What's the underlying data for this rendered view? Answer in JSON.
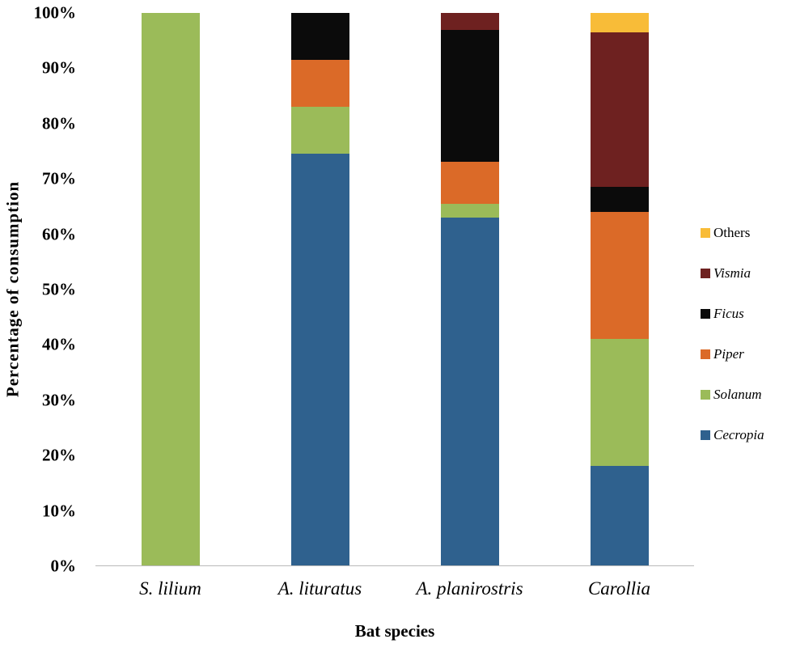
{
  "chart_data": {
    "type": "bar",
    "stacked": true,
    "percent": true,
    "title": "",
    "xlabel": "Bat species",
    "ylabel": "Percentage of consumption",
    "ylim": [
      0,
      100
    ],
    "ytick_labels": [
      "0%",
      "10%",
      "20%",
      "30%",
      "40%",
      "50%",
      "60%",
      "70%",
      "80%",
      "90%",
      "100%"
    ],
    "categories": [
      "S. lilium",
      "A. lituratus",
      "A. planirostris",
      "Carollia"
    ],
    "series": [
      {
        "name": "Cecropia",
        "color": "#2F618E",
        "values": [
          0,
          74.5,
          63,
          18
        ]
      },
      {
        "name": "Solanum",
        "color": "#9BBB59",
        "values": [
          100,
          8.5,
          2.5,
          23
        ]
      },
      {
        "name": "Piper",
        "color": "#DB6A28",
        "values": [
          0,
          8.5,
          7.5,
          23
        ]
      },
      {
        "name": "Ficus",
        "color": "#0B0B0B",
        "values": [
          0,
          8.5,
          24,
          4.5
        ]
      },
      {
        "name": "Vismia",
        "color": "#6E2120",
        "values": [
          0,
          0,
          3,
          28
        ]
      },
      {
        "name": "Others",
        "color": "#F8BC38",
        "values": [
          0,
          0,
          0,
          3.5
        ]
      }
    ],
    "grid": false,
    "legend_position": "right"
  },
  "legend": {
    "items": [
      {
        "label": "Others",
        "color": "#F8BC38",
        "italic": false
      },
      {
        "label": "Vismia",
        "color": "#6E2120",
        "italic": true
      },
      {
        "label": "Ficus",
        "color": "#0B0B0B",
        "italic": true
      },
      {
        "label": "Piper",
        "color": "#DB6A28",
        "italic": true
      },
      {
        "label": "Solanum",
        "color": "#9BBB59",
        "italic": true
      },
      {
        "label": "Cecropia",
        "color": "#2F618E",
        "italic": true
      }
    ]
  }
}
